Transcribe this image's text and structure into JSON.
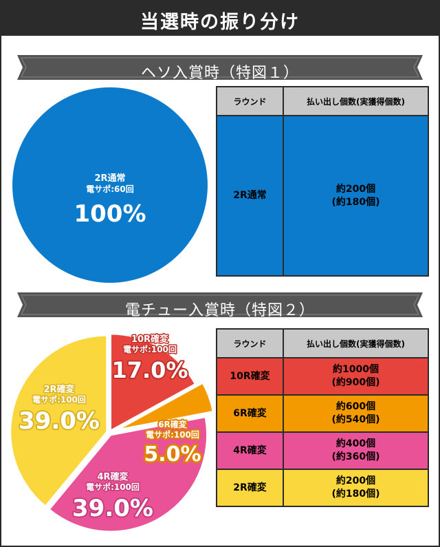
{
  "page": {
    "title": "当選時の振り分け"
  },
  "sections": [
    {
      "title": "ヘソ入賞時（特図１）"
    },
    {
      "title": "電チュー入賞時（特図２）"
    }
  ],
  "tables": [
    {
      "headers": [
        "ラウンド",
        "払い出し個数(実獲得個数)"
      ],
      "rows": [
        {
          "round": "2R通常",
          "payout": "約200個",
          "actual": "(約180個)",
          "color": "#0d7bcc"
        }
      ]
    },
    {
      "headers": [
        "ラウンド",
        "払い出し個数(実獲得個数)"
      ],
      "rows": [
        {
          "round": "10R確変",
          "payout": "約1000個",
          "actual": "(約900個)",
          "color": "#e6433c"
        },
        {
          "round": "6R確変",
          "payout": "約600個",
          "actual": "(約540個)",
          "color": "#f39a00"
        },
        {
          "round": "4R確変",
          "payout": "約400個",
          "actual": "(約360個)",
          "color": "#ea5298"
        },
        {
          "round": "2R確変",
          "payout": "約200個",
          "actual": "(約180個)",
          "color": "#fbd73e"
        }
      ]
    }
  ],
  "chart_data": [
    {
      "type": "pie",
      "slices": [
        {
          "name": "2R通常",
          "sub": "電サポ:60回",
          "value": 100,
          "label": "100%",
          "color": "#0d7bcc"
        }
      ]
    },
    {
      "type": "pie",
      "slices": [
        {
          "name": "10R確変",
          "sub": "電サポ:100回",
          "value": 17.0,
          "label": "17.0%",
          "color": "#e6433c"
        },
        {
          "name": "6R確変",
          "sub": "電サポ:100回",
          "value": 5.0,
          "label": "5.0%",
          "color": "#f39a00"
        },
        {
          "name": "4R確変",
          "sub": "電サポ:100回",
          "value": 39.0,
          "label": "39.0%",
          "color": "#ea5298"
        },
        {
          "name": "2R確変",
          "sub": "電サポ:100回",
          "value": 39.0,
          "label": "39.0%",
          "color": "#fbd73e"
        }
      ]
    }
  ]
}
